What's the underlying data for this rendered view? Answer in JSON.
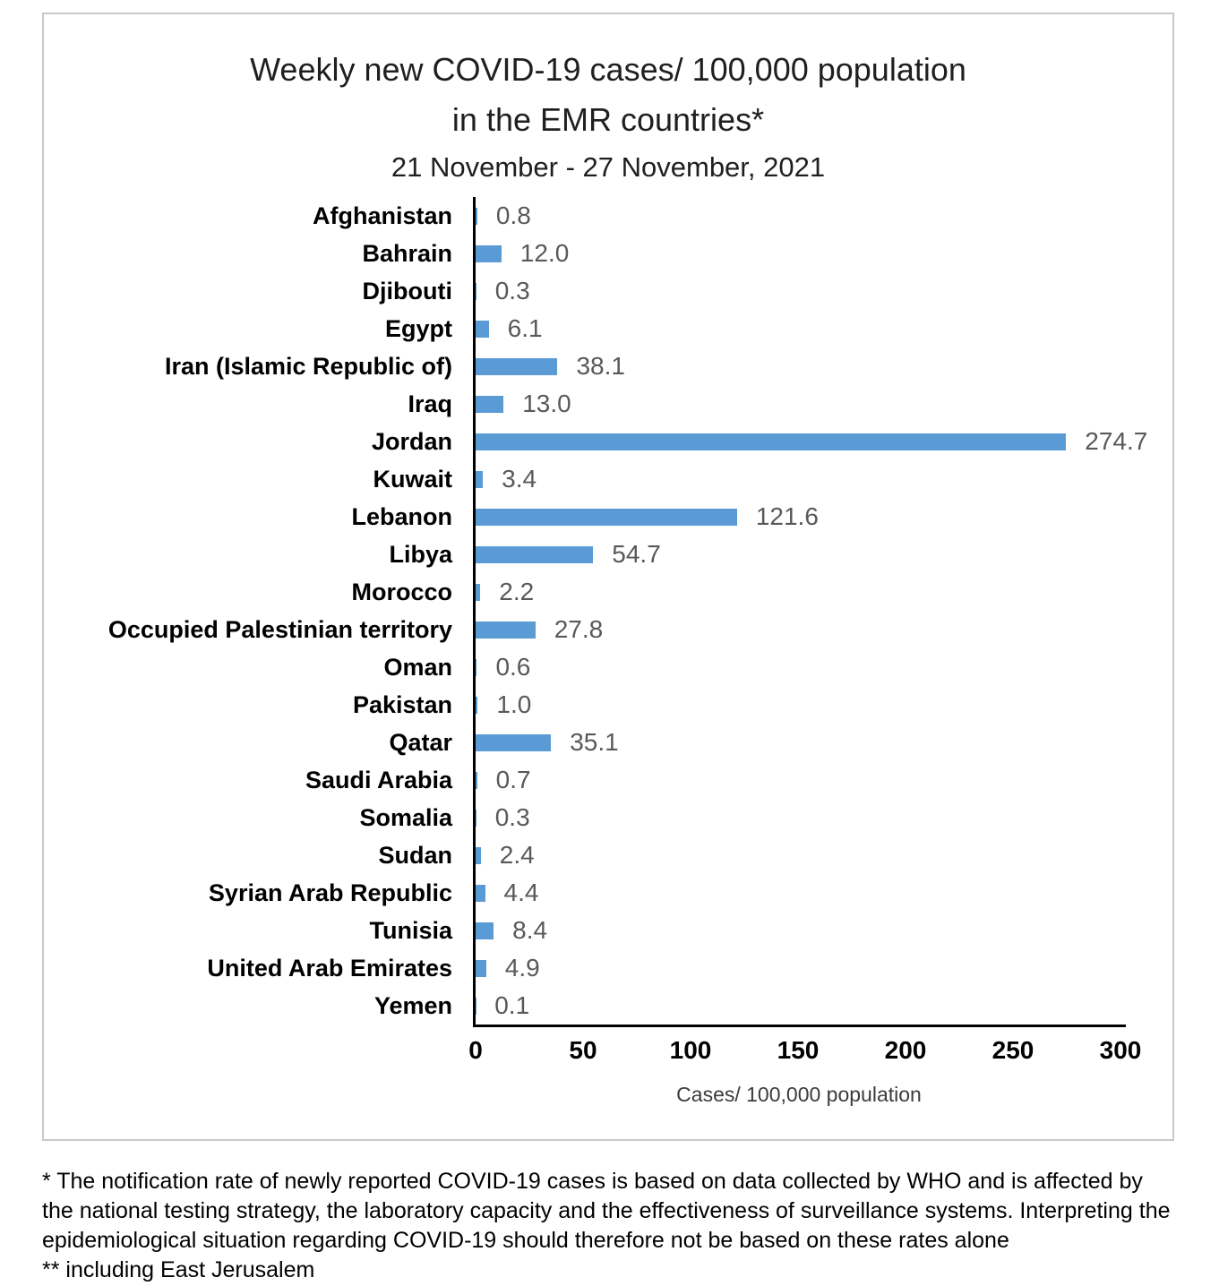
{
  "chart_data": {
    "type": "bar",
    "orientation": "horizontal",
    "title_line1": "Weekly new COVID-19 cases/ 100,000 population",
    "title_line2": "in the EMR countries*",
    "subtitle": "21 November - 27 November, 2021",
    "xlabel": "Cases/ 100,000 population",
    "xlim": [
      0,
      300
    ],
    "x_ticks": [
      "0",
      "50",
      "100",
      "150",
      "200",
      "250",
      "300"
    ],
    "x_tick_values": [
      0,
      50,
      100,
      150,
      200,
      250,
      300
    ],
    "grid": false,
    "legend": "none",
    "bar_color": "#5B9BD5",
    "value_label_color": "#595959",
    "categories": [
      "Afghanistan",
      "Bahrain",
      "Djibouti",
      "Egypt",
      "Iran (Islamic Republic of)",
      "Iraq",
      "Jordan",
      "Kuwait",
      "Lebanon",
      "Libya",
      "Morocco",
      "Occupied Palestinian territory",
      "Oman",
      "Pakistan",
      "Qatar",
      "Saudi Arabia",
      "Somalia",
      "Sudan",
      "Syrian Arab Republic",
      "Tunisia",
      "United Arab Emirates",
      "Yemen"
    ],
    "values": [
      0.8,
      12.0,
      0.3,
      6.1,
      38.1,
      13.0,
      274.7,
      3.4,
      121.6,
      54.7,
      2.2,
      27.8,
      0.6,
      1.0,
      35.1,
      0.7,
      0.3,
      2.4,
      4.4,
      8.4,
      4.9,
      0.1
    ],
    "value_labels": [
      "0.8",
      "12.0",
      "0.3",
      "6.1",
      "38.1",
      "13.0",
      "274.7",
      "3.4",
      "121.6",
      "54.7",
      "2.2",
      "27.8",
      "0.6",
      "1.0",
      "35.1",
      "0.7",
      "0.3",
      "2.4",
      "4.4",
      "8.4",
      "4.9",
      "0.1"
    ]
  },
  "footnotes": {
    "note1": "* The notification rate of newly reported COVID-19 cases is based on data collected by WHO and is affected by the national testing strategy, the laboratory capacity and the effectiveness of surveillance systems. Interpreting the epidemiological situation regarding COVID-19 should therefore not be based on these rates alone",
    "note2": "** including East Jerusalem"
  }
}
